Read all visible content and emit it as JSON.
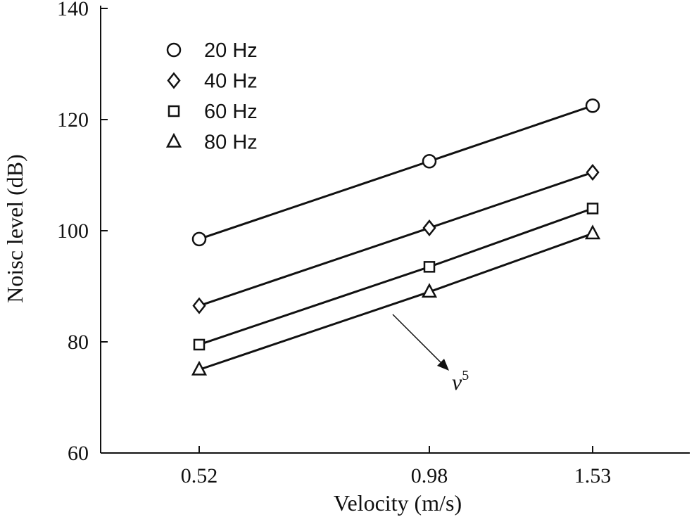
{
  "chart_data": {
    "type": "line",
    "title": "",
    "xlabel": "Velocity (m/s)",
    "ylabel": "Noisc level (dB)",
    "x": [
      0.52,
      0.98,
      1.53
    ],
    "xticks": [
      "0.52",
      "0.98",
      "1.53"
    ],
    "ylim": [
      60,
      140
    ],
    "yticks": [
      60,
      80,
      100,
      120,
      140
    ],
    "grid": false,
    "legend_position": "top-left",
    "series": [
      {
        "name": "20 Hz",
        "marker": "circle",
        "values": [
          98.5,
          112.5,
          122.5
        ]
      },
      {
        "name": "40 Hz",
        "marker": "diamond",
        "values": [
          86.5,
          100.5,
          110.5
        ]
      },
      {
        "name": "60 Hz",
        "marker": "square",
        "values": [
          79.5,
          93.5,
          104.0
        ]
      },
      {
        "name": "80 Hz",
        "marker": "triangle",
        "values": [
          75.0,
          89.0,
          99.5
        ]
      }
    ],
    "annotation": {
      "base": "v",
      "sup": "5"
    }
  }
}
